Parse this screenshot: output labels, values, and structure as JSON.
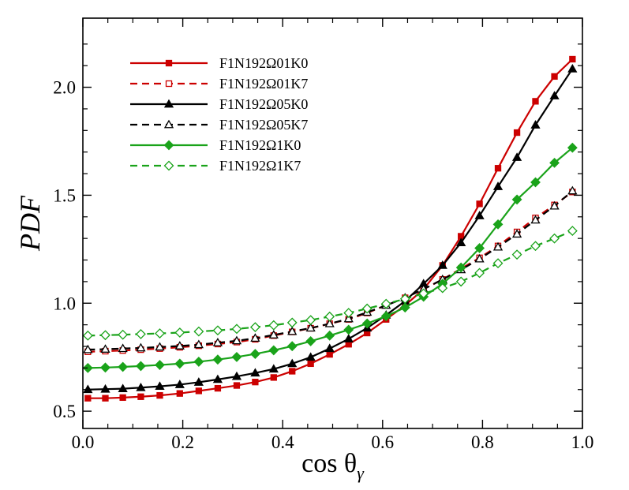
{
  "chart_data": {
    "type": "line",
    "title": "",
    "xlabel": "cos θ",
    "xlabel_subscript": "γ",
    "ylabel": "PDF",
    "xlim": [
      0.0,
      1.0
    ],
    "ylim": [
      0.42,
      2.32
    ],
    "xticks": [
      0.0,
      0.2,
      0.4,
      0.6,
      0.8,
      1.0
    ],
    "xtick_labels": [
      "0.0",
      "0.2",
      "0.4",
      "0.6",
      "0.8",
      "1.0"
    ],
    "yticks": [
      0.5,
      1.0,
      1.5,
      2.0
    ],
    "ytick_labels": [
      "0.5",
      "1.0",
      "1.5",
      "2.0"
    ],
    "grid": false,
    "legend_position": "top-left",
    "x": [
      0.01,
      0.045,
      0.08,
      0.116,
      0.154,
      0.194,
      0.232,
      0.27,
      0.308,
      0.345,
      0.382,
      0.419,
      0.456,
      0.494,
      0.532,
      0.569,
      0.607,
      0.645,
      0.682,
      0.72,
      0.757,
      0.794,
      0.831,
      0.869,
      0.906,
      0.944,
      0.98
    ],
    "series": [
      {
        "name": "F1N192Ω01K0",
        "color": "#cc0000",
        "dash": "solid",
        "marker": "square",
        "filled": true,
        "values": [
          0.56,
          0.56,
          0.563,
          0.567,
          0.573,
          0.582,
          0.594,
          0.606,
          0.619,
          0.635,
          0.656,
          0.685,
          0.72,
          0.763,
          0.81,
          0.862,
          0.925,
          0.99,
          1.065,
          1.175,
          1.31,
          1.46,
          1.625,
          1.79,
          1.935,
          2.05,
          2.13
        ]
      },
      {
        "name": "F1N192Ω01K7",
        "color": "#cc0000",
        "dash": "dashed",
        "marker": "square",
        "filled": false,
        "values": [
          0.775,
          0.778,
          0.781,
          0.785,
          0.79,
          0.796,
          0.803,
          0.811,
          0.82,
          0.833,
          0.85,
          0.867,
          0.884,
          0.905,
          0.925,
          0.955,
          0.99,
          1.025,
          1.065,
          1.11,
          1.16,
          1.21,
          1.265,
          1.33,
          1.395,
          1.455,
          1.515
        ]
      },
      {
        "name": "F1N192Ω05K0",
        "color": "#000000",
        "dash": "solid",
        "marker": "triangle",
        "filled": true,
        "values": [
          0.6,
          0.602,
          0.604,
          0.609,
          0.615,
          0.623,
          0.634,
          0.647,
          0.661,
          0.677,
          0.695,
          0.72,
          0.75,
          0.79,
          0.835,
          0.885,
          0.945,
          1.01,
          1.09,
          1.175,
          1.28,
          1.405,
          1.54,
          1.675,
          1.825,
          1.96,
          2.085
        ]
      },
      {
        "name": "F1N192Ω05K7",
        "color": "#000000",
        "dash": "dashed",
        "marker": "triangle",
        "filled": false,
        "values": [
          0.785,
          0.787,
          0.79,
          0.793,
          0.797,
          0.802,
          0.808,
          0.817,
          0.826,
          0.838,
          0.853,
          0.869,
          0.885,
          0.905,
          0.928,
          0.958,
          0.99,
          1.025,
          1.065,
          1.11,
          1.155,
          1.205,
          1.26,
          1.32,
          1.385,
          1.45,
          1.52
        ]
      },
      {
        "name": "F1N192Ω1K0",
        "color": "#1aa31a",
        "dash": "solid",
        "marker": "diamond",
        "filled": true,
        "values": [
          0.7,
          0.702,
          0.705,
          0.709,
          0.714,
          0.72,
          0.729,
          0.739,
          0.751,
          0.765,
          0.782,
          0.801,
          0.824,
          0.85,
          0.877,
          0.906,
          0.94,
          0.98,
          1.03,
          1.09,
          1.165,
          1.255,
          1.365,
          1.48,
          1.56,
          1.65,
          1.72
        ]
      },
      {
        "name": "F1N192Ω1K7",
        "color": "#1aa31a",
        "dash": "dashed",
        "marker": "diamond",
        "filled": false,
        "values": [
          0.85,
          0.852,
          0.854,
          0.857,
          0.86,
          0.864,
          0.869,
          0.874,
          0.881,
          0.889,
          0.898,
          0.91,
          0.922,
          0.938,
          0.955,
          0.975,
          0.997,
          1.02,
          1.045,
          1.07,
          1.1,
          1.14,
          1.185,
          1.225,
          1.265,
          1.3,
          1.335
        ]
      }
    ]
  }
}
